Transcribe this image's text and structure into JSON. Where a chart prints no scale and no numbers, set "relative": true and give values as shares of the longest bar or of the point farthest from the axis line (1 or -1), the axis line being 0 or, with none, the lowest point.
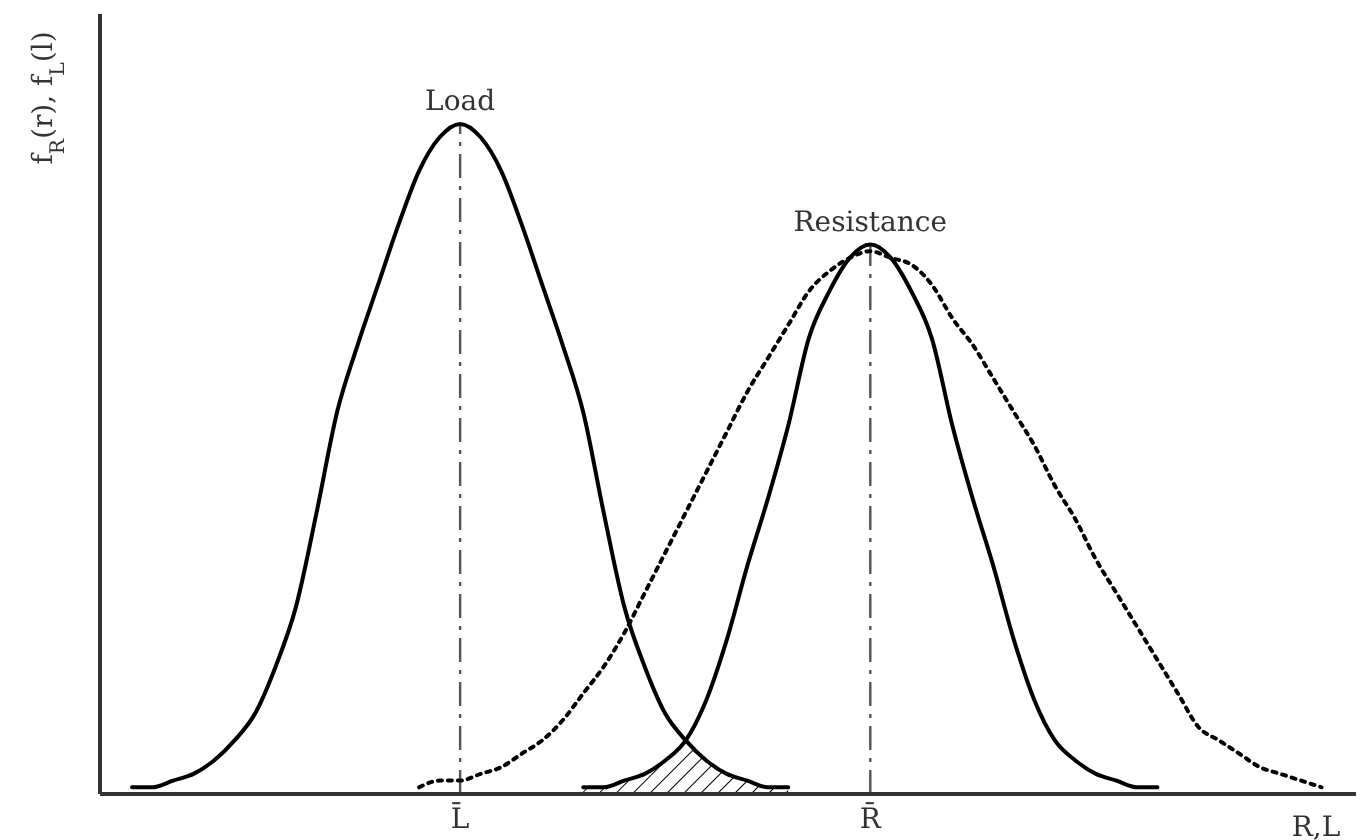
{
  "chart_data": {
    "type": "line",
    "relative": true,
    "ylabel": "f$_{R}$(r), f$_{L}$(l)",
    "xlabel": "R,L",
    "marker": "none",
    "categories": [
      null,
      null,
      null,
      null,
      null,
      null,
      null,
      null,
      null,
      null,
      null,
      null,
      null,
      null,
      null,
      null,
      "L̄",
      null,
      null,
      null,
      null,
      null,
      null,
      null,
      null,
      null,
      null,
      null,
      null,
      null,
      null,
      null,
      null,
      null,
      null,
      null,
      "R̄",
      null,
      null,
      null,
      null,
      null,
      null,
      null,
      null,
      null,
      null,
      null,
      null,
      null,
      null,
      null,
      null,
      null,
      null,
      null,
      null,
      null,
      null,
      null
    ],
    "series": [
      {
        "name": "Load",
        "color": "#000000",
        "line_style": "solid",
        "values": [
          0.01,
          0.01,
          0.02,
          0.03,
          0.05,
          0.08,
          0.12,
          0.19,
          0.28,
          0.42,
          0.57,
          0.67,
          0.76,
          0.85,
          0.93,
          0.98,
          1,
          0.98,
          0.93,
          0.85,
          0.76,
          0.67,
          0.57,
          0.42,
          0.28,
          0.19,
          0.12,
          0.08,
          0.05,
          0.03,
          0.02,
          0.01,
          0.01,
          null,
          null,
          null,
          null,
          null,
          null,
          null,
          null,
          null,
          null,
          null,
          null,
          null,
          null,
          null,
          null,
          null,
          null,
          null,
          null,
          null,
          null,
          null,
          null,
          null,
          null,
          null
        ]
      },
      {
        "name": "Resistance",
        "color": "#000000",
        "line_style": "solid",
        "values": [
          null,
          null,
          null,
          null,
          null,
          null,
          null,
          null,
          null,
          null,
          null,
          null,
          null,
          null,
          null,
          null,
          null,
          null,
          null,
          null,
          null,
          null,
          0.01,
          0.01,
          0.02,
          0.03,
          0.05,
          0.08,
          0.14,
          0.23,
          0.34,
          0.44,
          0.55,
          0.68,
          0.75,
          0.8,
          0.82,
          0.8,
          0.75,
          0.68,
          0.55,
          0.44,
          0.34,
          0.23,
          0.14,
          0.08,
          0.05,
          0.03,
          0.02,
          0.01,
          0.01,
          null,
          null,
          null,
          null,
          null,
          null,
          null,
          null,
          null
        ]
      },
      {
        "color": "#000000",
        "line_style": "dotted",
        "values": [
          null,
          null,
          null,
          null,
          null,
          null,
          null,
          null,
          null,
          null,
          null,
          null,
          null,
          null,
          0.01,
          0.02,
          0.02,
          0.03,
          0.04,
          0.06,
          0.08,
          0.11,
          0.15,
          0.19,
          0.24,
          0.3,
          0.36,
          0.42,
          0.48,
          0.54,
          0.6,
          0.65,
          0.7,
          0.75,
          0.78,
          0.8,
          0.81,
          0.8,
          0.79,
          0.76,
          0.71,
          0.67,
          0.62,
          0.57,
          0.52,
          0.46,
          0.41,
          0.35,
          0.3,
          0.25,
          0.2,
          0.15,
          0.1,
          0.08,
          0.06,
          0.04,
          0.03,
          0.02,
          0.01,
          null
        ]
      },
      {
        "type": "area",
        "color": "#000000",
        "values": [
          null,
          null,
          null,
          null,
          null,
          null,
          null,
          null,
          null,
          null,
          null,
          null,
          null,
          null,
          null,
          null,
          null,
          null,
          null,
          null,
          null,
          null,
          0.01,
          0.01,
          0.02,
          0.03,
          0.05,
          0.08,
          0.05,
          0.03,
          0.02,
          0.01,
          0.01,
          null,
          null,
          null,
          null,
          null,
          null,
          null,
          null,
          null,
          null,
          null,
          null,
          null,
          null,
          null,
          null,
          null,
          null,
          null,
          null,
          null,
          null,
          null,
          null,
          null,
          null,
          null
        ]
      }
    ],
    "ref_lines": [
      {
        "axis": "x",
        "value": "L̄",
        "line_style": "dashed",
        "color": "#555555"
      },
      {
        "axis": "x",
        "value": "R̄",
        "line_style": "dashed",
        "color": "#555555"
      }
    ]
  }
}
